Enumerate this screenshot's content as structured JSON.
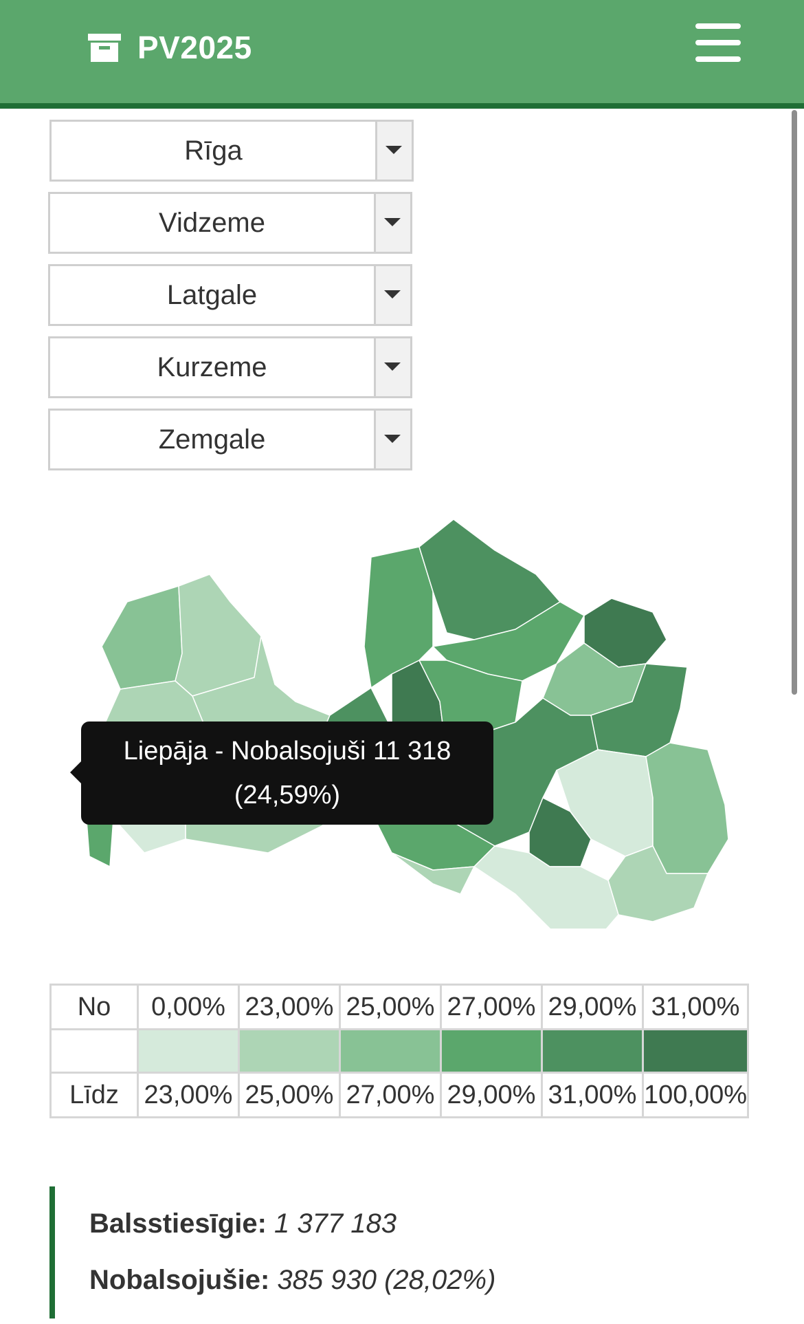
{
  "header": {
    "title": "PV2025",
    "logo_icon": "archive-box-icon",
    "menu_icon": "hamburger-menu-icon",
    "background_color": "#5ba76c",
    "border_color": "#1f6e35"
  },
  "filters": [
    {
      "label": "Rīga"
    },
    {
      "label": "Vidzeme"
    },
    {
      "label": "Latgale"
    },
    {
      "label": "Kurzeme"
    },
    {
      "label": "Zemgale"
    }
  ],
  "map": {
    "tooltip_line1": "Liepāja - Nobalsojuši 11 318",
    "tooltip_line2": "(24,59%)",
    "colors": [
      "#d5eadb",
      "#add5b5",
      "#88c295",
      "#5ba76c",
      "#4d9160",
      "#3f7a51"
    ]
  },
  "legend": {
    "from_label": "No",
    "to_label": "Līdz",
    "from_values": [
      "0,00%",
      "23,00%",
      "25,00%",
      "27,00%",
      "29,00%",
      "31,00%"
    ],
    "to_values": [
      "23,00%",
      "25,00%",
      "27,00%",
      "29,00%",
      "31,00%",
      "100,00%"
    ]
  },
  "summary": {
    "eligible_label": "Balsstiesīgie:",
    "eligible_value": "1 377 183",
    "voted_label": "Nobalsojušie:",
    "voted_value": "385 930 (28,02%)"
  }
}
